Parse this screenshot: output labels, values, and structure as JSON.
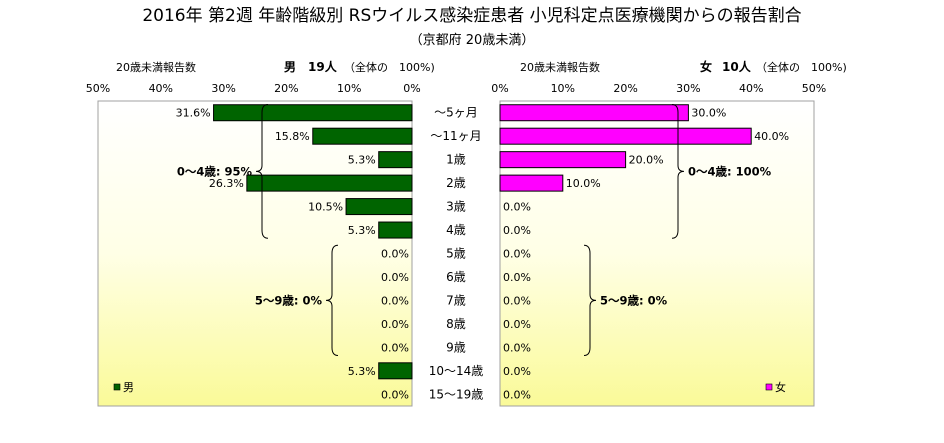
{
  "title": "2016年 第2週 年齢階級別 RSウイルス感染症患者 小児科定点医療機関からの報告割合",
  "subtitle": "（京都府 20歳未満）",
  "chart_data": {
    "type": "bar",
    "orientation": "horizontal",
    "categories": [
      "～5ヶ月",
      "～11ヶ月",
      "1歳",
      "2歳",
      "3歳",
      "4歳",
      "5歳",
      "6歳",
      "7歳",
      "8歳",
      "9歳",
      "10～14歳",
      "15～19歳"
    ],
    "x_ticks": [
      "50%",
      "40%",
      "30%",
      "20%",
      "10%",
      "0%"
    ],
    "xlim": [
      0,
      50
    ],
    "panels": [
      {
        "header": "20歳未満報告数",
        "series_title": "男",
        "count_label": "19人",
        "total_note": "（全体の　100%)",
        "legend_label": "男",
        "color": "#006400",
        "direction": "left",
        "values": [
          31.6,
          15.8,
          5.3,
          26.3,
          10.5,
          5.3,
          0.0,
          0.0,
          0.0,
          0.0,
          0.0,
          5.3,
          0.0
        ],
        "data_labels": [
          "31.6%",
          "15.8%",
          "5.3%",
          "26.3%",
          "10.5%",
          "5.3%",
          "0.0%",
          "0.0%",
          "0.0%",
          "0.0%",
          "0.0%",
          "5.3%",
          "0.0%"
        ],
        "annotations": [
          {
            "text": "0～4歳: 95%",
            "from_index": 0,
            "to_index": 5
          },
          {
            "text": "5～9歳: 0%",
            "from_index": 6,
            "to_index": 10
          }
        ]
      },
      {
        "header": "20歳未満報告数",
        "series_title": "女",
        "count_label": "10人",
        "total_note": "（全体の　100%)",
        "legend_label": "女",
        "color": "#ff00ff",
        "direction": "right",
        "values": [
          30.0,
          40.0,
          20.0,
          10.0,
          0.0,
          0.0,
          0.0,
          0.0,
          0.0,
          0.0,
          0.0,
          0.0,
          0.0
        ],
        "data_labels": [
          "30.0%",
          "40.0%",
          "20.0%",
          "10.0%",
          "0.0%",
          "0.0%",
          "0.0%",
          "0.0%",
          "0.0%",
          "0.0%",
          "0.0%",
          "0.0%",
          "0.0%"
        ],
        "annotations": [
          {
            "text": "0～4歳: 100%",
            "from_index": 0,
            "to_index": 5
          },
          {
            "text": "5～9歳: 0%",
            "from_index": 6,
            "to_index": 10
          }
        ]
      }
    ]
  }
}
